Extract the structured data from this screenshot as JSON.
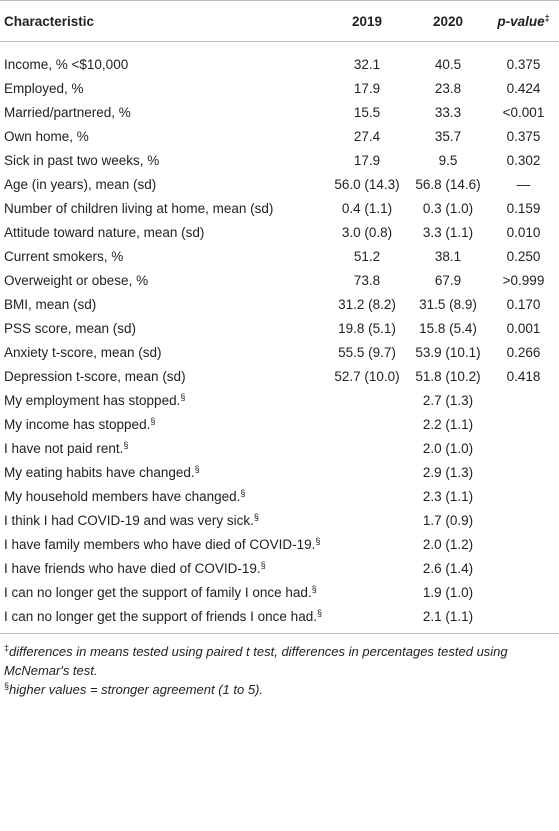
{
  "table": {
    "header": [
      {
        "text": "Characteristic"
      },
      {
        "text": "2019"
      },
      {
        "text": "2020"
      },
      {
        "text": "p-value",
        "mark": "‡"
      }
    ],
    "rows": [
      {
        "label": "Income, % <$10,000",
        "v2019": "32.1",
        "v2020": "40.5",
        "p": "0.375"
      },
      {
        "label": "Employed, %",
        "v2019": "17.9",
        "v2020": "23.8",
        "p": "0.424"
      },
      {
        "label": "Married/partnered, %",
        "v2019": "15.5",
        "v2020": "33.3",
        "p": "<0.001"
      },
      {
        "label": "Own home, %",
        "v2019": "27.4",
        "v2020": "35.7",
        "p": "0.375"
      },
      {
        "label": "Sick in past two weeks, %",
        "v2019": "17.9",
        "v2020": "9.5",
        "p": "0.302"
      },
      {
        "label": "Age (in years), mean (sd)",
        "v2019": "56.0 (14.3)",
        "v2020": "56.8 (14.6)",
        "p": "—"
      },
      {
        "label": "Number of children living at home, mean (sd)",
        "v2019": "0.4 (1.1)",
        "v2020": "0.3 (1.0)",
        "p": "0.159"
      },
      {
        "label": "Attitude toward nature, mean (sd)",
        "v2019": "3.0 (0.8)",
        "v2020": "3.3 (1.1)",
        "p": "0.010"
      },
      {
        "label": "Current smokers, %",
        "v2019": "51.2",
        "v2020": "38.1",
        "p": "0.250"
      },
      {
        "label": "Overweight or obese, %",
        "v2019": "73.8",
        "v2020": "67.9",
        "p": ">0.999"
      },
      {
        "label": "BMI, mean (sd)",
        "v2019": "31.2 (8.2)",
        "v2020": "31.5 (8.9)",
        "p": "0.170"
      },
      {
        "label": "PSS score, mean (sd)",
        "v2019": "19.8 (5.1)",
        "v2020": "15.8 (5.4)",
        "p": "0.001"
      },
      {
        "label": "Anxiety t-score, mean (sd)",
        "v2019": "55.5 (9.7)",
        "v2020": "53.9 (10.1)",
        "p": "0.266"
      },
      {
        "label": "Depression t-score, mean (sd)",
        "v2019": "52.7 (10.0)",
        "v2020": "51.8 (10.2)",
        "p": "0.418"
      },
      {
        "label": "My employment has stopped.",
        "mark": "§",
        "v2020": "2.7 (1.3)"
      },
      {
        "label": "My income has stopped.",
        "mark": "§",
        "v2020": "2.2 (1.1)"
      },
      {
        "label": "I have not paid rent.",
        "mark": "§",
        "v2020": "2.0 (1.0)"
      },
      {
        "label": "My eating habits have changed.",
        "mark": "§",
        "v2020": "2.9 (1.3)"
      },
      {
        "label": "My household members have changed.",
        "mark": "§",
        "v2020": "2.3 (1.1)"
      },
      {
        "label": "I think I had COVID-19 and was very sick.",
        "mark": "§",
        "v2020": "1.7 (0.9)"
      },
      {
        "label": "I have family members who have died of COVID-19.",
        "mark": "§",
        "v2020": "2.0 (1.2)"
      },
      {
        "label": "I have friends who have died of COVID-19.",
        "mark": "§",
        "v2020": "2.6 (1.4)"
      },
      {
        "label": "I can no longer get the support of family I once had.",
        "mark": "§",
        "v2020": "1.9 (1.0)"
      },
      {
        "label": "I can no longer get the support of friends I once had.",
        "mark": "§",
        "v2020": "2.1 (1.1)"
      }
    ]
  },
  "footnotes": [
    {
      "mark": "‡",
      "text": "differences in means tested using paired t test, differences in percentages tested using McNemar's test."
    },
    {
      "mark": "§",
      "text": "higher values = stronger agreement (1 to 5)."
    }
  ]
}
